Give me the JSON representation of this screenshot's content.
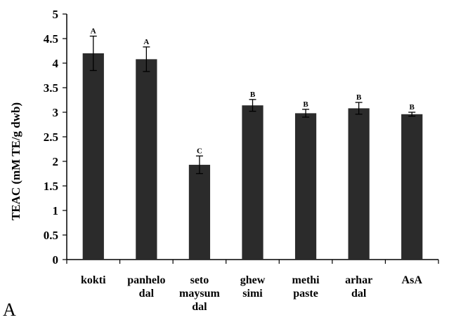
{
  "panel_label": "A",
  "chart_data": {
    "type": "bar",
    "title": "",
    "xlabel": "",
    "ylabel": "TEAC (mM TE/g dwb)",
    "ylim": [
      0,
      5
    ],
    "yticks": [
      "0",
      "0.5",
      "1",
      "1.5",
      "2",
      "2.5",
      "3",
      "3.5",
      "4",
      "4.5",
      "5"
    ],
    "categories": [
      [
        "kokti"
      ],
      [
        "panhelo",
        "dal"
      ],
      [
        "seto",
        "maysum",
        "dal"
      ],
      [
        "ghew",
        "simi"
      ],
      [
        "methi",
        "paste"
      ],
      [
        "arhar",
        "dal"
      ],
      [
        "AsA"
      ]
    ],
    "values": [
      4.2,
      4.08,
      1.93,
      3.14,
      2.98,
      3.08,
      2.96
    ],
    "errors": [
      0.35,
      0.25,
      0.18,
      0.12,
      0.08,
      0.12,
      0.04
    ],
    "significance": [
      "A",
      "A",
      "C",
      "B",
      "B",
      "B",
      "B"
    ],
    "bar_color": "#2b2b2b",
    "grid": false,
    "legend": "none"
  }
}
